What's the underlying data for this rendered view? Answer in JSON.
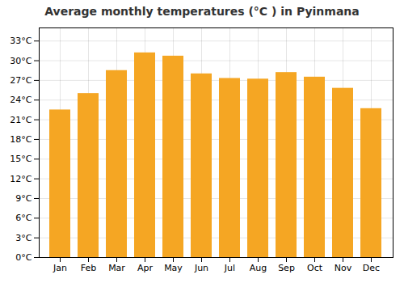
{
  "chart_data": {
    "type": "bar",
    "title": "Average monthly temperatures (°C ) in Pyinmana",
    "categories": [
      "Jan",
      "Feb",
      "Mar",
      "Apr",
      "May",
      "Jun",
      "Jul",
      "Aug",
      "Sep",
      "Oct",
      "Nov",
      "Dec"
    ],
    "values": [
      22.5,
      25.0,
      28.5,
      31.2,
      30.7,
      28.0,
      27.3,
      27.2,
      28.2,
      27.5,
      25.8,
      22.7
    ],
    "color": "#F5A623",
    "ylim": [
      0,
      35
    ],
    "yticks": [
      {
        "value": 0,
        "label": "0°C"
      },
      {
        "value": 3,
        "label": "3°C"
      },
      {
        "value": 6,
        "label": "6°C"
      },
      {
        "value": 9,
        "label": "9°C"
      },
      {
        "value": 12,
        "label": "12°C"
      },
      {
        "value": 15,
        "label": "15°C"
      },
      {
        "value": 18,
        "label": "18°C"
      },
      {
        "value": 21,
        "label": "21°C"
      },
      {
        "value": 24,
        "label": "24°C"
      },
      {
        "value": 27,
        "label": "27°C"
      },
      {
        "value": 30,
        "label": "30°C"
      },
      {
        "value": 33,
        "label": "33°C"
      }
    ],
    "grid": true
  }
}
